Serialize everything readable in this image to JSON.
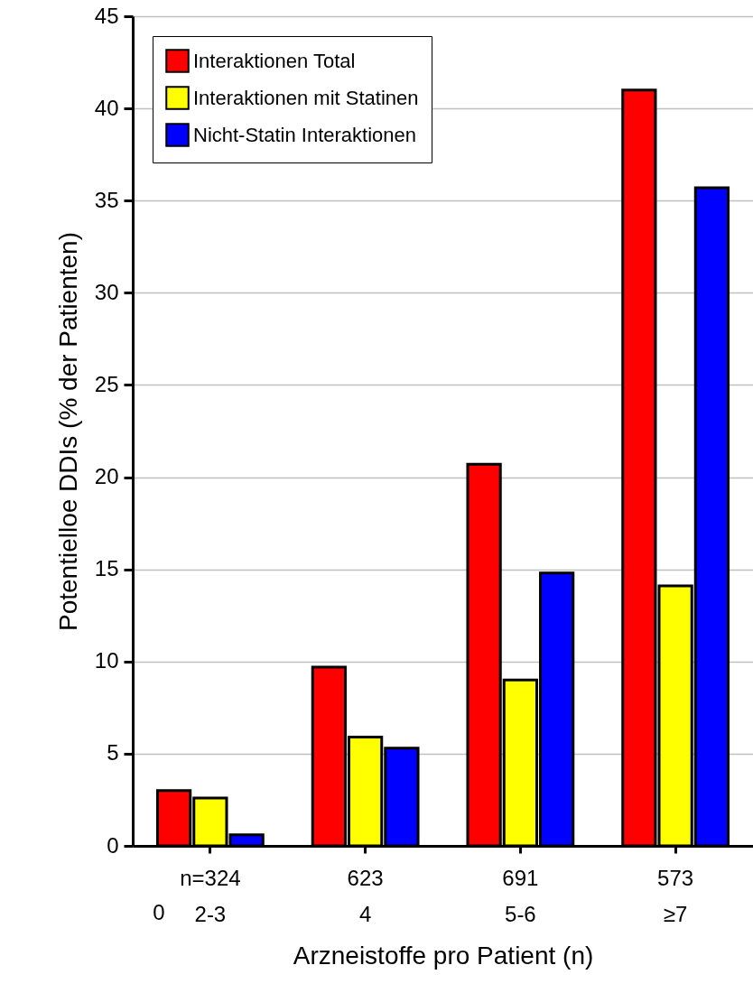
{
  "chart_data": {
    "type": "bar",
    "xlabel": "Arzneistoffe pro Patient (n)",
    "ylabel": "Potentielloe DDIs (% der Patienten)",
    "categories": [
      "2-3",
      "4",
      "5-6",
      "≥7"
    ],
    "series": [
      {
        "name": "Interaktionen Total",
        "color": "#ff0000",
        "values": [
          3.0,
          9.7,
          20.7,
          41.0
        ]
      },
      {
        "name": "Interaktionen mit Statinen",
        "color": "#ffff00",
        "values": [
          2.6,
          5.9,
          9.0,
          14.1
        ]
      },
      {
        "name": "Nicht-Statin Interaktionen",
        "color": "#0000ff",
        "values": [
          0.6,
          5.3,
          14.8,
          35.7
        ]
      }
    ],
    "ylim": [
      0,
      45
    ],
    "yticks": [
      0,
      5,
      10,
      15,
      20,
      25,
      30,
      35,
      40,
      45
    ],
    "grid": "y",
    "legend": "top left",
    "annotations": [
      "n=324",
      "623",
      "691",
      "573",
      "0"
    ]
  }
}
